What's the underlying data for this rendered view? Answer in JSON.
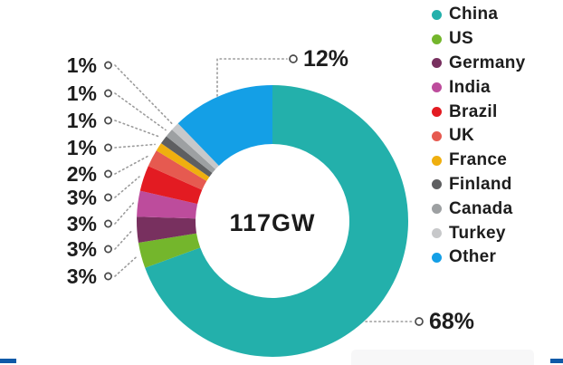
{
  "chart_data": {
    "type": "donut",
    "title": "",
    "center_label": "117GW",
    "legend_position": "right",
    "series": [
      {
        "name": "China",
        "value": 68,
        "pct_label": "68%",
        "color": "#23B0AB"
      },
      {
        "name": "US",
        "value": 3,
        "pct_label": "3%",
        "color": "#74B62C"
      },
      {
        "name": "Germany",
        "value": 3,
        "pct_label": "3%",
        "color": "#78305F"
      },
      {
        "name": "India",
        "value": 3,
        "pct_label": "3%",
        "color": "#BD4C9C"
      },
      {
        "name": "Brazil",
        "value": 3,
        "pct_label": "3%",
        "color": "#E31B22"
      },
      {
        "name": "UK",
        "value": 2,
        "pct_label": "2%",
        "color": "#E65A50"
      },
      {
        "name": "France",
        "value": 1,
        "pct_label": "1%",
        "color": "#EFAF0F"
      },
      {
        "name": "Finland",
        "value": 1,
        "pct_label": "1%",
        "color": "#5E5F61"
      },
      {
        "name": "Canada",
        "value": 1,
        "pct_label": "1%",
        "color": "#9DA0A2"
      },
      {
        "name": "Turkey",
        "value": 1,
        "pct_label": "1%",
        "color": "#C7C8CA"
      },
      {
        "name": "Other",
        "value": 12,
        "pct_label": "12%",
        "color": "#149FE6"
      }
    ]
  },
  "footer": {
    "left_bar_color": "#0F5AA8",
    "right_bar_color": "#0F5AA8"
  }
}
